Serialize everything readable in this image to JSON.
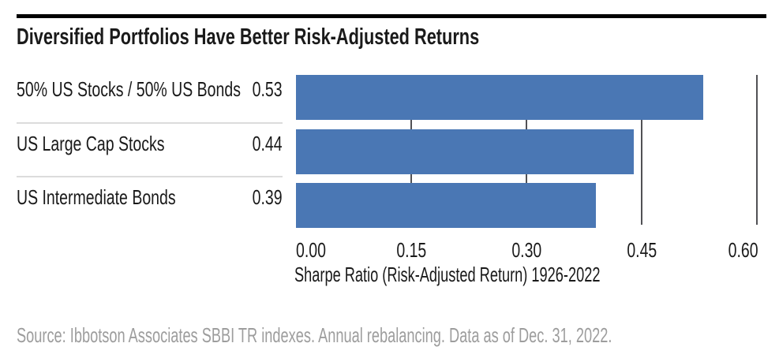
{
  "header": {
    "title": "Diversified Portfolios Have Better Risk-Adjusted Returns"
  },
  "chart_data": {
    "type": "bar",
    "orientation": "horizontal",
    "title": "Diversified Portfolios Have Better Risk-Adjusted Returns",
    "categories": [
      "50% US Stocks / 50% US Bonds",
      "US Large Cap Stocks",
      "US Intermediate Bonds"
    ],
    "values": [
      0.53,
      0.44,
      0.39
    ],
    "value_labels": [
      "0.53",
      "0.44",
      "0.39"
    ],
    "xlabel": "Sharpe Ratio (Risk-Adjusted Return) 1926-2022",
    "x_ticks": [
      "0.00",
      "0.15",
      "0.30",
      "0.45",
      "0.60"
    ],
    "xlim": [
      0.0,
      0.6
    ],
    "grid": "vertical gridlines at each tick, drawn behind bars",
    "legend": false,
    "bar_color": "#4a77b4",
    "gridline_color": "#515155",
    "separator_color": "#dcdcdc",
    "text_color": "#1a1a1a",
    "source_color": "#9d9d9d"
  },
  "footer": {
    "source": "Source: Ibbotson Associates SBBI TR indexes. Annual rebalancing. Data as of Dec. 31, 2022."
  }
}
